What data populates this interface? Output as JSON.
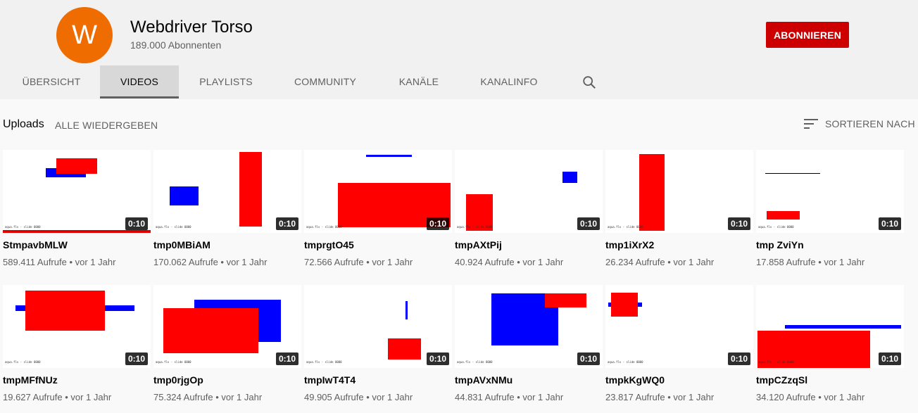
{
  "channel": {
    "avatar_letter": "W",
    "name": "Webdriver Torso",
    "subscribers": "189.000 Abonnenten",
    "subscribe_label": "ABONNIEREN",
    "avatar_color": "#ef6c00",
    "subscribe_color": "#cc0000"
  },
  "tabs": [
    {
      "label": "ÜBERSICHT"
    },
    {
      "label": "VIDEOS",
      "active": true
    },
    {
      "label": "PLAYLISTS"
    },
    {
      "label": "COMMUNITY"
    },
    {
      "label": "KANÄLE"
    },
    {
      "label": "KANALINFO"
    }
  ],
  "section": {
    "title": "Uploads",
    "play_all": "ALLE WIEDERGEBEN",
    "sort_label": "SORTIEREN NACH"
  },
  "videos": [
    {
      "title": "StmpavbMLW",
      "views": "589.411 Aufrufe",
      "age": "vor 1 Jahr",
      "duration": "0:10",
      "watched": 1.0
    },
    {
      "title": "tmp0MBiAM",
      "views": "170.062 Aufrufe",
      "age": "vor 1 Jahr",
      "duration": "0:10"
    },
    {
      "title": "tmprgtO45",
      "views": "72.566 Aufrufe",
      "age": "vor 1 Jahr",
      "duration": "0:10"
    },
    {
      "title": "tmpAXtPij",
      "views": "40.924 Aufrufe",
      "age": "vor 1 Jahr",
      "duration": "0:10"
    },
    {
      "title": "tmp1iXrX2",
      "views": "26.234 Aufrufe",
      "age": "vor 1 Jahr",
      "duration": "0:10"
    },
    {
      "title": "tmp ZviYn",
      "views": "17.858 Aufrufe",
      "age": "vor 1 Jahr",
      "duration": "0:10"
    },
    {
      "title": "tmpMFfNUz",
      "views": "19.627 Aufrufe",
      "age": "vor 1 Jahr",
      "duration": "0:10"
    },
    {
      "title": "tmp0rjgOp",
      "views": "75.324 Aufrufe",
      "age": "vor 1 Jahr",
      "duration": "0:10"
    },
    {
      "title": "tmpIwT4T4",
      "views": "49.905 Aufrufe",
      "age": "vor 1 Jahr",
      "duration": "0:10"
    },
    {
      "title": "tmpAVxNMu",
      "views": "44.831 Aufrufe",
      "age": "vor 1 Jahr",
      "duration": "0:10"
    },
    {
      "title": "tmpkKgWQ0",
      "views": "23.817 Aufrufe",
      "age": "vor 1 Jahr",
      "duration": "0:10"
    },
    {
      "title": "tmpCZzqSl",
      "views": "34.120 Aufrufe",
      "age": "vor 1 Jahr",
      "duration": "0:10"
    }
  ],
  "colors": {
    "thumb_red": "#ff0000",
    "thumb_blue": "#0000ff"
  }
}
